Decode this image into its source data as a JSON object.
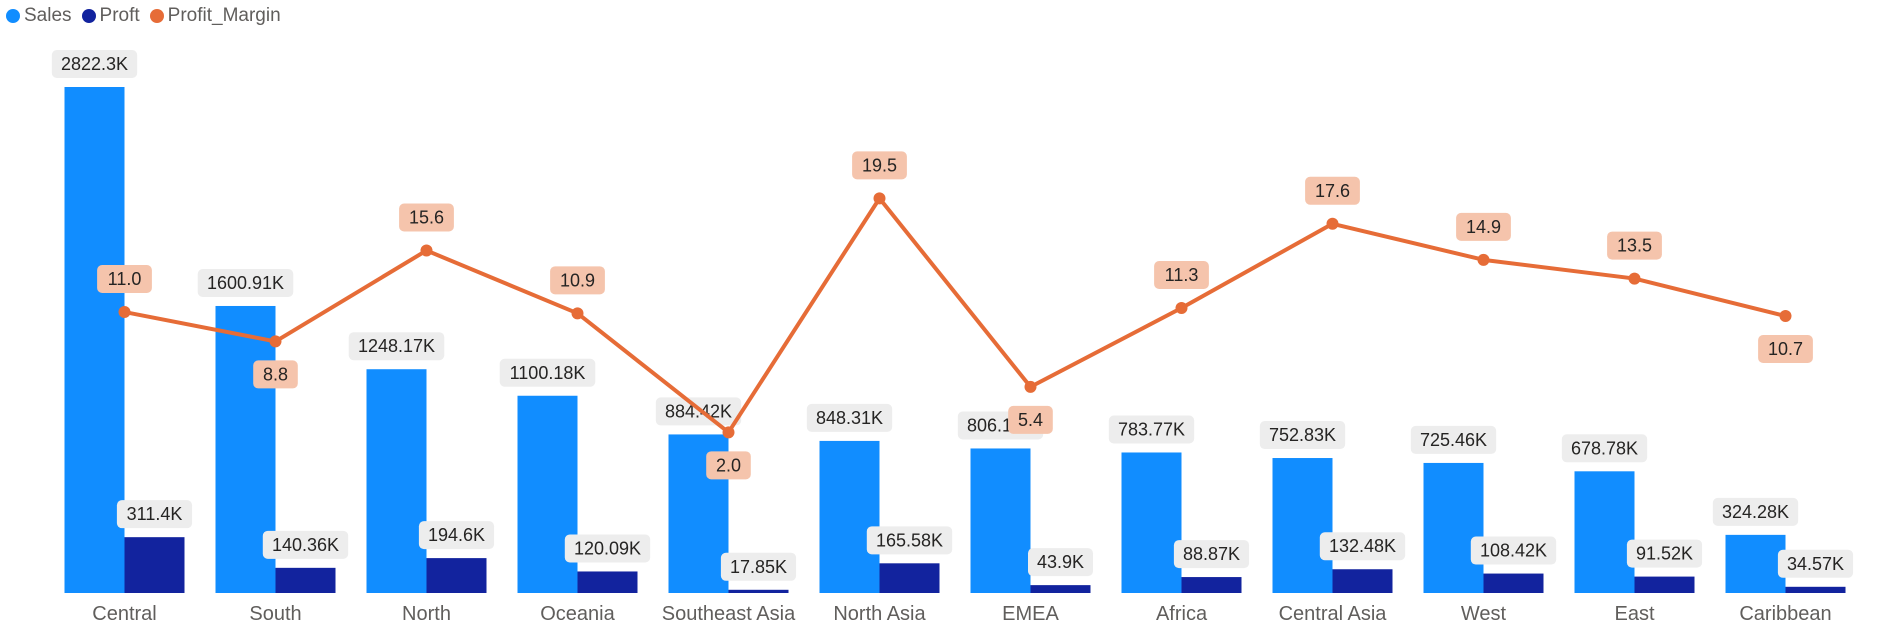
{
  "chart_data": {
    "type": "bar",
    "categories": [
      "Central",
      "South",
      "North",
      "Oceania",
      "Southeast Asia",
      "North Asia",
      "EMEA",
      "Africa",
      "Central Asia",
      "West",
      "East",
      "Caribbean"
    ],
    "series": [
      {
        "name": "Sales",
        "type": "bar",
        "color": "#118dff",
        "values": [
          2822300,
          1600910,
          1248170,
          1100180,
          884420,
          848310,
          806160,
          783770,
          752830,
          725460,
          678780,
          324280
        ],
        "labels": [
          "2822.3K",
          "1600.91K",
          "1248.17K",
          "1100.18K",
          "884.42K",
          "848.31K",
          "806.16K",
          "783.77K",
          "752.83K",
          "725.46K",
          "678.78K",
          "324.28K"
        ]
      },
      {
        "name": "Proft",
        "type": "bar",
        "color": "#12239e",
        "values": [
          311400,
          140360,
          194600,
          120090,
          17850,
          165580,
          43900,
          88870,
          132480,
          108420,
          91520,
          34570
        ],
        "labels": [
          "311.4K",
          "140.36K",
          "194.6K",
          "120.09K",
          "17.85K",
          "165.58K",
          "43.9K",
          "88.87K",
          "132.48K",
          "108.42K",
          "91.52K",
          "34.57K"
        ]
      },
      {
        "name": "Profit_Margin",
        "type": "line",
        "color": "#e66c37",
        "values": [
          11.0,
          8.8,
          15.6,
          10.9,
          2.0,
          19.5,
          5.4,
          11.3,
          17.6,
          14.9,
          13.5,
          10.7
        ],
        "labels": [
          "11.0",
          "8.8",
          "15.6",
          "10.9",
          "2.0",
          "19.5",
          "5.4",
          "11.3",
          "17.6",
          "14.9",
          "13.5",
          "10.7"
        ]
      }
    ],
    "legend": "top-left",
    "grid": false
  }
}
